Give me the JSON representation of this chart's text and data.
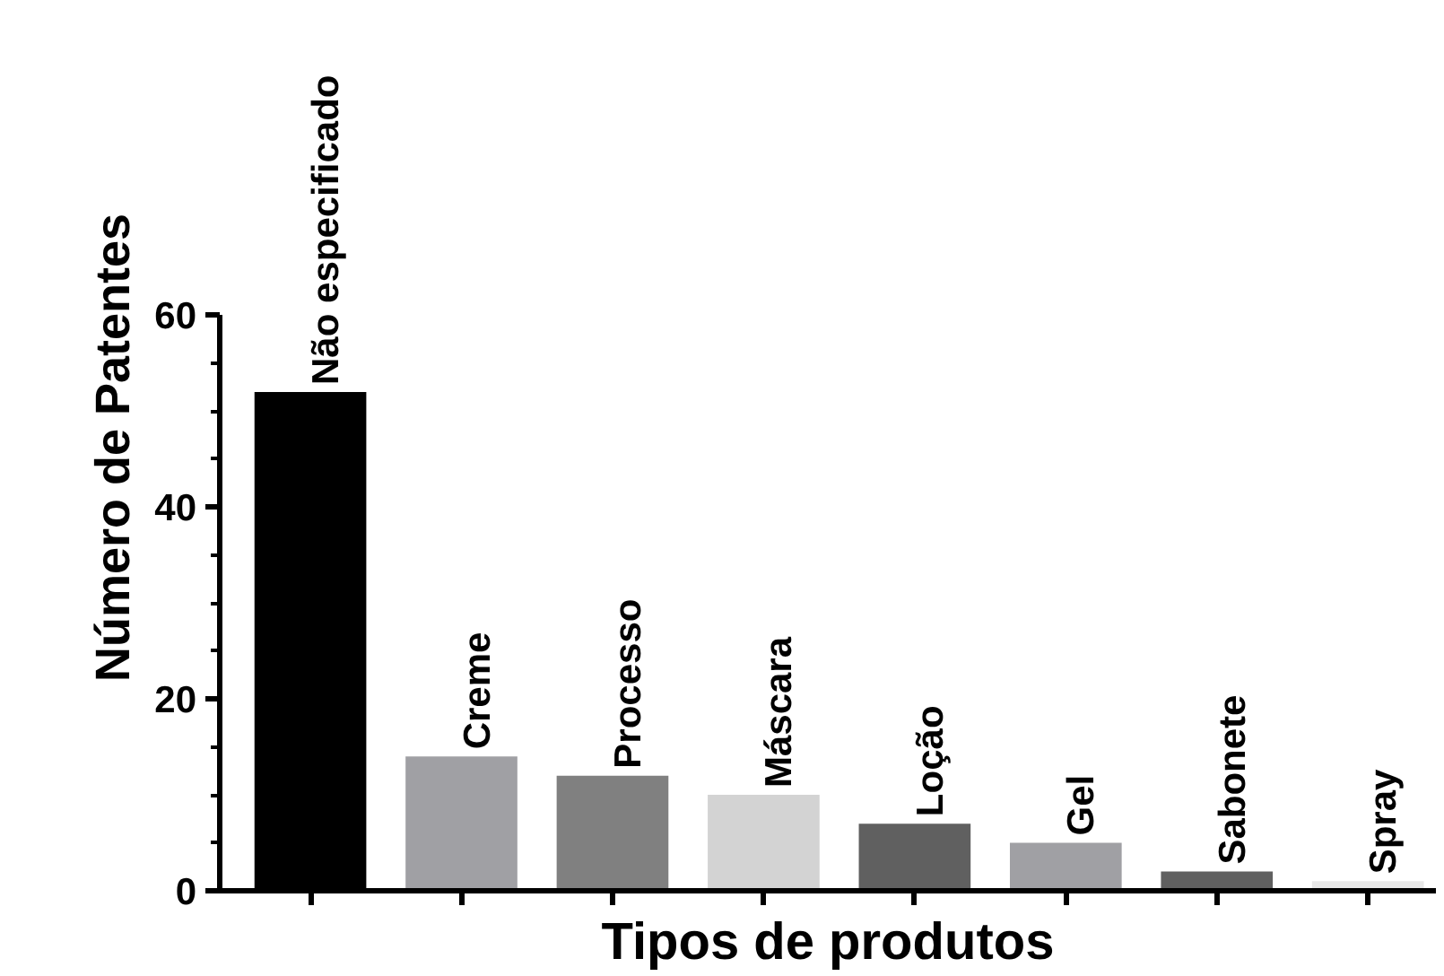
{
  "chart_data": {
    "type": "bar",
    "xlabel": "Tipos de produtos",
    "ylabel": "Número de Patentes",
    "categories": [
      "Não especificado",
      "Creme",
      "Processo",
      "Máscara",
      "Loção",
      "Gel",
      "Sabonete",
      "Spray"
    ],
    "values": [
      52,
      14,
      12,
      10,
      7,
      5,
      2,
      1
    ],
    "colors": [
      "#000000",
      "#a0a0a4",
      "#808080",
      "#d3d3d3",
      "#606060",
      "#a0a0a4",
      "#606060",
      "#e8e8e8"
    ],
    "ylim": [
      0,
      60
    ],
    "yticks": [
      0,
      20,
      40,
      60
    ],
    "grid": false
  }
}
